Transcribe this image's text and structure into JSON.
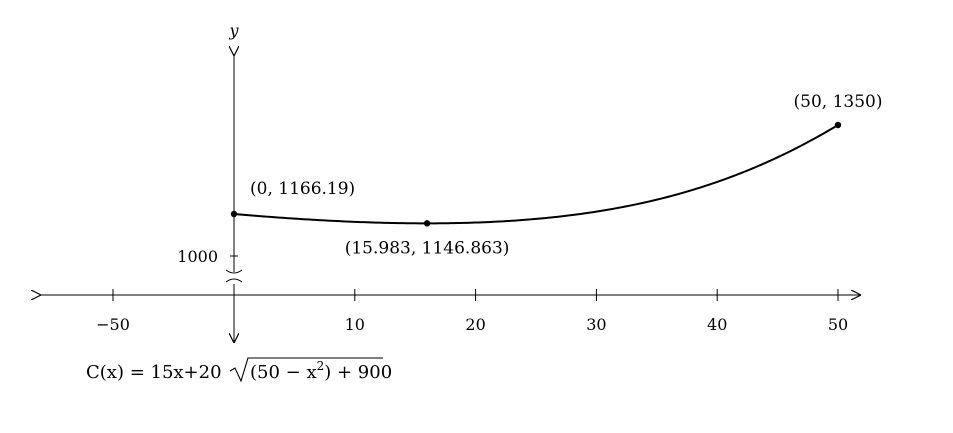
{
  "chart_data": {
    "type": "line",
    "title": "",
    "xlabel": "",
    "ylabel": "y",
    "xlim": [
      -50,
      50
    ],
    "y_break_value": 1000,
    "x_ticks": [
      {
        "value": -50,
        "label": "−50"
      },
      {
        "value": 10,
        "label": "10"
      },
      {
        "value": 20,
        "label": "20"
      },
      {
        "value": 30,
        "label": "30"
      },
      {
        "value": 40,
        "label": "40"
      },
      {
        "value": 50,
        "label": "50"
      }
    ],
    "y_tick_label": "1000",
    "series": [
      {
        "function": "C(x) = 15x + 20*sqrt((50 - x)^2 + 900)",
        "x_domain": [
          0,
          50
        ]
      }
    ],
    "points": [
      {
        "x": 0,
        "y": 1166.19,
        "label": "(0, 1166.19)"
      },
      {
        "x": 15.983,
        "y": 1146.863,
        "label": "(15.983, 1146.863)"
      },
      {
        "x": 50,
        "y": 1350,
        "label": "(50, 1350)"
      }
    ],
    "formula": {
      "lhs": "C(x) = 15x+20",
      "radicand": "(50 − x",
      "exp": "2",
      "tail": ") + 900"
    }
  }
}
